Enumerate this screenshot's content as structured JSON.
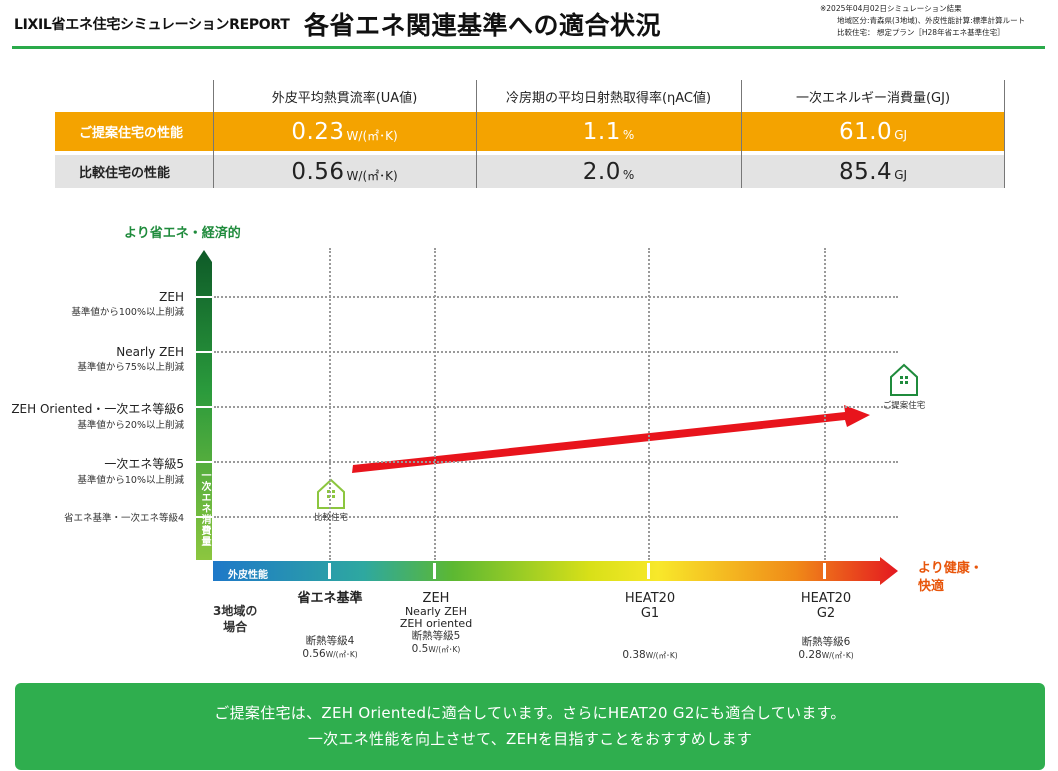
{
  "header": {
    "report_name": "LIXIL省エネ住宅シミュレーションREPORT",
    "title": "各省エネ関連基準への適合状況",
    "meta_lines": [
      "※2025年04月02日シミュレーション結果",
      "地域区分:青森県(3地域)、外皮性能計算:標準計算ルート",
      "比較住宅：  想定プラン［H28年省エネ基準住宅］"
    ]
  },
  "table": {
    "columns": [
      "外皮平均熱貫流率(UA値)",
      "冷房期の平均日射熱取得率(ηAC値)",
      "一次エネルギー消費量(GJ)"
    ],
    "rows": [
      {
        "label": "ご提案住宅の性能",
        "values": [
          {
            "num": "0.23",
            "unit": "W/(㎡･K)"
          },
          {
            "num": "1.1",
            "unit": "%"
          },
          {
            "num": "61.0",
            "unit": "GJ"
          }
        ]
      },
      {
        "label": "比較住宅の性能",
        "values": [
          {
            "num": "0.56",
            "unit": "W/(㎡･K)"
          },
          {
            "num": "2.0",
            "unit": "%"
          },
          {
            "num": "85.4",
            "unit": "GJ"
          }
        ]
      }
    ]
  },
  "chart": {
    "y_axis_title": "より省エネ・経済的",
    "y_axis_bar_label": "一次エネ消費量",
    "y_levels": [
      {
        "name": "ZEH",
        "sub": "基準値から100%以上削減"
      },
      {
        "name": "Nearly ZEH",
        "sub": "基準値から75%以上削減"
      },
      {
        "name": "ZEH Oriented・一次エネ等級6",
        "sub": "基準値から20%以上削減"
      },
      {
        "name": "一次エネ等級5",
        "sub": "基準値から10%以上削減"
      },
      {
        "name": "省エネ基準・一次エネ等級4",
        "sub": ""
      }
    ],
    "x_axis_bar_label": "外皮性能",
    "x_axis_end_label_1": "より健康・",
    "x_axis_end_label_2": "快適",
    "region_label_1": "3地域の",
    "region_label_2": "場合",
    "x_levels": [
      {
        "name": "省エネ基準",
        "sub1": "",
        "sub2": "",
        "grade": "断熱等級4",
        "value": "0.56",
        "unit": "W/(㎡･K)"
      },
      {
        "name": "ZEH",
        "sub1": "Nearly ZEH",
        "sub2": "ZEH oriented",
        "grade": "断熱等級5",
        "value": "0.5",
        "unit": "W/(㎡･K)"
      },
      {
        "name": "HEAT20",
        "sub1": "G1",
        "sub2": "",
        "grade": "",
        "value": "0.38",
        "unit": "W/(㎡･K)"
      },
      {
        "name": "HEAT20",
        "sub1": "G2",
        "sub2": "",
        "grade": "断熱等級6",
        "value": "0.28",
        "unit": "W/(㎡･K)"
      }
    ],
    "comparison_house_label": "比較住宅",
    "proposal_house_label": "ご提案住宅",
    "colors": {
      "green_dark": "#1a6e2e",
      "green": "#2aaa4a",
      "orange": "#f4a300",
      "red_arrow": "#e8141c",
      "blue": "#1e7fc8"
    }
  },
  "summary": {
    "line1": "ご提案住宅は、ZEH Orientedに適合しています。さらにHEAT20 G2にも適合しています。",
    "line2": "一次エネ性能を向上させて、ZEHを目指すことをおすすめします"
  }
}
